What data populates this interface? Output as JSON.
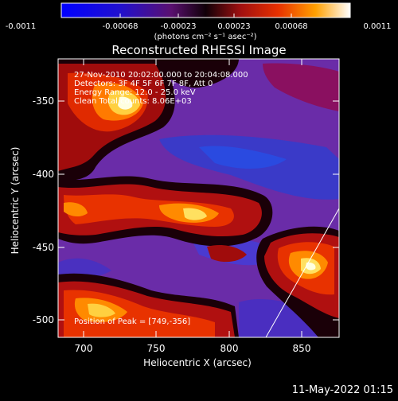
{
  "colorbar": {
    "tick_labels": [
      "-0.0011",
      "-0.00068",
      "-0.00023",
      "0.00023",
      "0.00068",
      "0.0011"
    ],
    "unit_label": "(photons cm⁻² s⁻¹ asec⁻²)",
    "range": [
      -0.0011,
      0.0011
    ]
  },
  "title": "Reconstructed RHESSI Image",
  "info": {
    "line1": "27-Nov-2010 20:02:00.000 to 20:04:08.000",
    "line2": "Detectors: 3F 4F 5F 6F 7F 8F, Att 0",
    "line3": "Energy Range: 12.0 - 25.0 keV",
    "line4": "Clean     Total counts: 8.06E+03",
    "peak": "Position of Peak = [749,-356]"
  },
  "axes": {
    "xlabel": "Heliocentric X (arcsec)",
    "ylabel": "Heliocentric Y (arcsec)",
    "xticks": [
      "700",
      "750",
      "800",
      "850"
    ],
    "yticks": [
      "-350",
      "-400",
      "-450",
      "-500"
    ],
    "x_range": [
      683,
      876
    ],
    "y_range": [
      -512,
      -322
    ]
  },
  "footer": {
    "timestamp": "11-May-2022 01:15"
  },
  "colors": {
    "background": "#000000",
    "foreground": "#ffffff"
  }
}
